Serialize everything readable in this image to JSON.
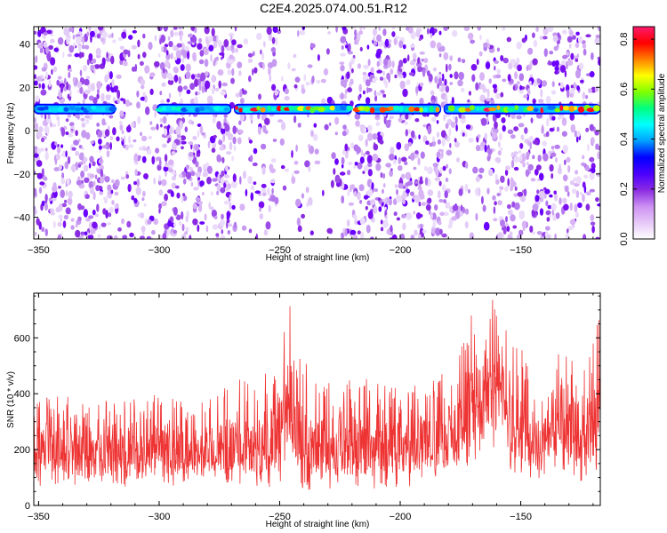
{
  "figure_title": "C2E4.2025.074.00.51.R12",
  "chart_data": [
    {
      "type": "heatmap",
      "xlabel": "Height of straight line (km)",
      "ylabel": "Frequency (Hz)",
      "xlim": [
        -352,
        -117
      ],
      "ylim": [
        -50,
        48
      ],
      "xticks": [
        -350,
        -300,
        -250,
        -200,
        -150
      ],
      "yticks": [
        -40,
        -20,
        0,
        20,
        40
      ],
      "colorbar": {
        "label": "Normalized spectral amplitude",
        "range": [
          0.0,
          0.85
        ],
        "ticks": [
          "0.0",
          "0.2",
          "0.4",
          "0.6",
          "0.8"
        ],
        "colormap": [
          "#ffffff",
          "#e6c8f8",
          "#cc90f2",
          "#8a2be2",
          "#4b00ff",
          "#0000ff",
          "#00a0ff",
          "#00ffff",
          "#00ff80",
          "#80ff00",
          "#ffff00",
          "#ff8000",
          "#ff0000",
          "#ff1a6e"
        ]
      },
      "band": {
        "center_hz": 10,
        "segments": [
          {
            "x": [
              -352,
              -318
            ],
            "peak": 0.45
          },
          {
            "x": [
              -301,
              -270
            ],
            "peak": 0.5
          },
          {
            "x": [
              -269,
              -220
            ],
            "peak": 0.85
          },
          {
            "x": [
              -219,
              -183
            ],
            "peak": 0.8
          },
          {
            "x": [
              -182,
              -117
            ],
            "peak": 0.85
          }
        ]
      },
      "grid": false
    },
    {
      "type": "line",
      "xlabel": "Height of straight line (km)",
      "ylabel": "SNR (10 * v/v)",
      "xlim": [
        -352,
        -117
      ],
      "ylim": [
        0,
        760
      ],
      "xticks": [
        -350,
        -300,
        -250,
        -200,
        -150
      ],
      "yticks": [
        0,
        200,
        400,
        600
      ],
      "series": [
        {
          "color": "#ee3333",
          "envelope": {
            "x": [
              -352,
              -340,
              -330,
              -320,
              -310,
              -300,
              -290,
              -280,
              -270,
              -262,
              -255,
              -250,
              -246,
              -242,
              -236,
              -230,
              -220,
              -210,
              -200,
              -190,
              -182,
              -175,
              -170,
              -166,
              -162,
              -158,
              -154,
              -150,
              -145,
              -140,
              -135,
              -130,
              -125,
              -120,
              -117
            ],
            "low": [
              60,
              70,
              60,
              60,
              70,
              70,
              70,
              80,
              80,
              70,
              60,
              80,
              150,
              60,
              50,
              60,
              50,
              50,
              60,
              80,
              80,
              100,
              150,
              200,
              180,
              200,
              120,
              100,
              90,
              100,
              120,
              100,
              60,
              80,
              120
            ],
            "high": [
              380,
              420,
              360,
              380,
              380,
              420,
              380,
              380,
              460,
              440,
              480,
              580,
              740,
              560,
              460,
              460,
              460,
              460,
              420,
              440,
              480,
              560,
              740,
              700,
              740,
              700,
              600,
              580,
              480,
              420,
              560,
              560,
              540,
              640,
              700
            ]
          }
        }
      ],
      "grid": false
    }
  ]
}
